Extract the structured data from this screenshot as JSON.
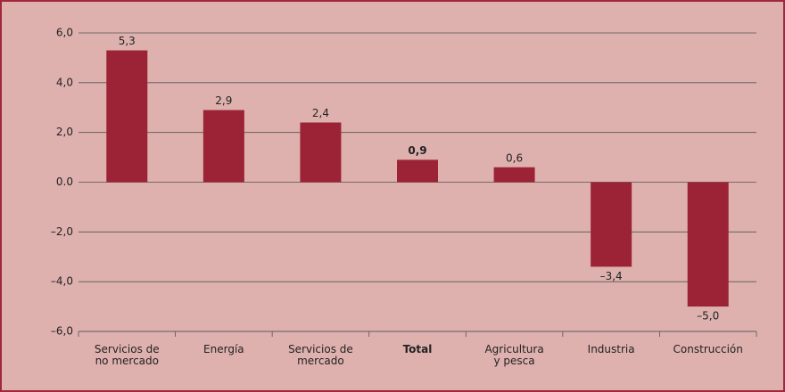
{
  "chart_data": {
    "type": "bar",
    "categories": [
      [
        "Servicios de",
        "no mercado"
      ],
      [
        "Energía"
      ],
      [
        "Servicios de",
        "mercado"
      ],
      [
        "Total"
      ],
      [
        "Agricultura",
        "y pesca"
      ],
      [
        "Industria"
      ],
      [
        "Construcción"
      ]
    ],
    "values": [
      5.3,
      2.9,
      2.4,
      0.9,
      0.6,
      -3.4,
      -5.0
    ],
    "value_labels": [
      "5,3",
      "2,9",
      "2,4",
      "0,9",
      "0,6",
      "–3,4",
      "–5,0"
    ],
    "color": "#9b2335",
    "ylim": [
      -6,
      6
    ],
    "yticks": [
      {
        "value": 6,
        "label": "6,0"
      },
      {
        "value": 4,
        "label": "4,0"
      },
      {
        "value": 2,
        "label": "2,0"
      },
      {
        "value": 0,
        "label": "0.0"
      },
      {
        "value": -2,
        "label": "–2,0"
      },
      {
        "value": -4,
        "label": "–4,0"
      },
      {
        "value": -6,
        "label": "–6,0"
      }
    ],
    "grid": true,
    "bold_category": 3
  }
}
